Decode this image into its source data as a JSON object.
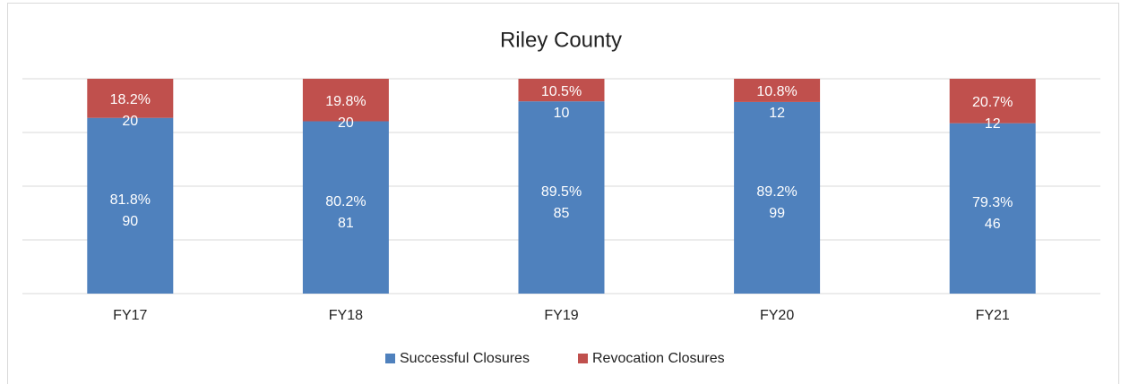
{
  "chart_data": {
    "type": "stacked_bar_100",
    "title": "Riley County",
    "categories": [
      "FY17",
      "FY18",
      "FY19",
      "FY20",
      "FY21"
    ],
    "series": [
      {
        "name": "Successful Closures",
        "color": "#4f81bd",
        "values": [
          81.8,
          80.2,
          89.5,
          89.2,
          79.3
        ],
        "value_labels": [
          "81.8%",
          "80.2%",
          "89.5%",
          "89.2%",
          "79.3%"
        ],
        "counts": [
          90,
          81,
          85,
          99,
          46
        ]
      },
      {
        "name": "Revocation Closures",
        "color": "#c0504d",
        "values": [
          18.2,
          19.8,
          10.5,
          10.8,
          20.7
        ],
        "value_labels": [
          "18.2%",
          "19.8%",
          "10.5%",
          "10.8%",
          "20.7%"
        ],
        "counts": [
          20,
          20,
          10,
          12,
          12
        ]
      }
    ],
    "ylim": [
      0,
      100
    ],
    "yticks": [
      0,
      25,
      50,
      75,
      100
    ],
    "grid": true,
    "legend": "bottom"
  }
}
